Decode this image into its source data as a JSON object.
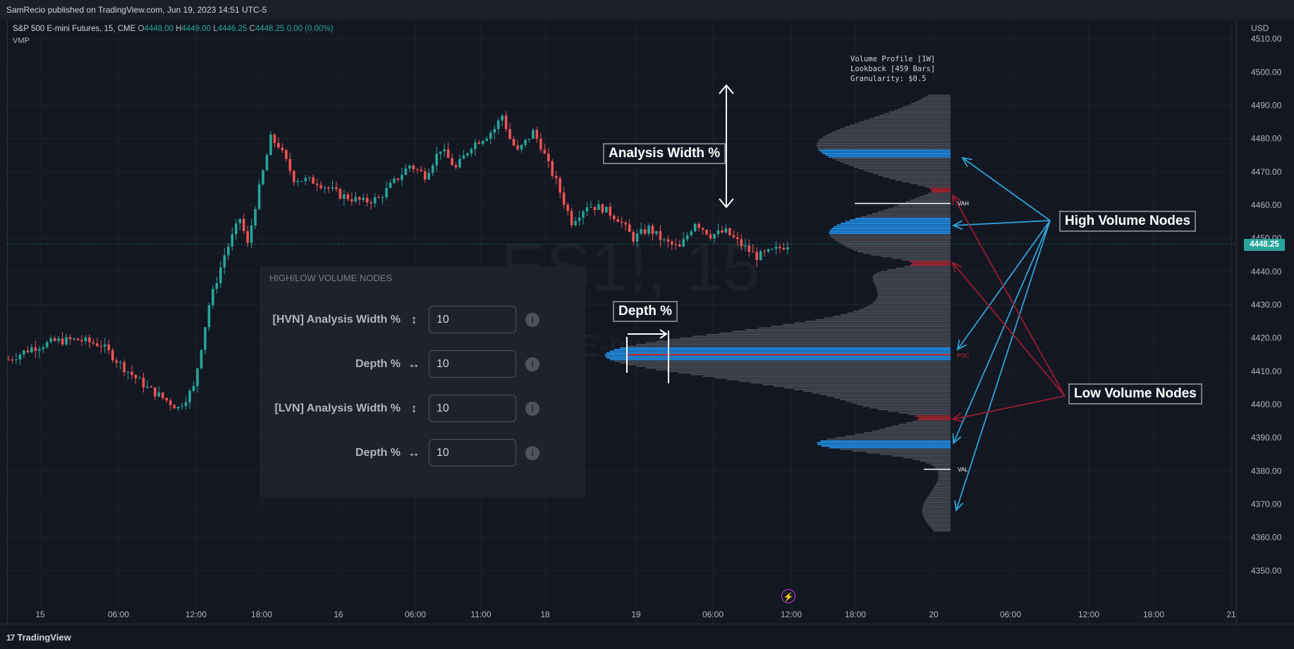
{
  "header": {
    "publisher_line": "SamRecio published on TradingView.com, Jun 19, 2023 14:51 UTC-5"
  },
  "legend": {
    "symbol": "S&P 500 E-mini Futures, 15, CME",
    "o_label": "O",
    "o_value": "4448.00",
    "h_label": "H",
    "h_value": "4449.00",
    "l_label": "L",
    "l_value": "4446.25",
    "c_label": "C",
    "c_value": "4448.25",
    "change": "0.00 (0.00%)",
    "indicator": "VMP"
  },
  "currency": "USD",
  "watermark": {
    "ticker": "ES1!, 15",
    "sub": "E-mini"
  },
  "volume_profile_info": "Volume Profile [1W]\nLookback [459 Bars]\nGranularity: $0.5",
  "callouts": {
    "analysis_width": "Analysis Width %",
    "depth": "Depth %",
    "high_volume_nodes": "High Volume Nodes",
    "low_volume_nodes": "Low Volume Nodes"
  },
  "settings": {
    "title": "HIGH/LOW VOLUME NODES",
    "rows": [
      {
        "label": "[HVN] Analysis Width %",
        "arrow": "↕",
        "value": "10"
      },
      {
        "label": "Depth %",
        "arrow": "↔",
        "value": "10"
      },
      {
        "label": "[LVN]  Analysis Width %",
        "arrow": "↕",
        "value": "10"
      },
      {
        "label": "Depth %",
        "arrow": "↔",
        "value": "10"
      }
    ],
    "info_glyph": "i"
  },
  "footer": {
    "brand": "TradingView",
    "logo_glyph": "17"
  },
  "current_price_tag": "4448.25",
  "colors": {
    "background": "#131722",
    "up": "#26a69a",
    "down": "#ef5350",
    "hvn": "#2196f3",
    "lvn": "#b22833",
    "profile": "#4a4c55",
    "arrow_blue": "#2fa3d8",
    "arrow_red": "#9b1c31"
  },
  "chart_data": {
    "type": "candlestick",
    "symbol": "ES1!",
    "interval": "15",
    "y_axis": {
      "ticks": [
        "4510.00",
        "4500.00",
        "4490.00",
        "4480.00",
        "4470.00",
        "4460.00",
        "4450.00",
        "4440.00",
        "4430.00",
        "4420.00",
        "4410.00",
        "4400.00",
        "4390.00",
        "4380.00",
        "4370.00",
        "4360.00",
        "4350.00"
      ],
      "ylim": [
        4345,
        4512
      ]
    },
    "x_axis": {
      "ticks": [
        "15",
        "06:00",
        "12:00",
        "18:00",
        "16",
        "06:00",
        "11:00",
        "18",
        "19",
        "06:00",
        "12:00",
        "18:00",
        "20",
        "06:00",
        "12:00",
        "18:00",
        "21"
      ]
    },
    "close_path": [
      [
        0,
        4413.5
      ],
      [
        6,
        4417
      ],
      [
        12,
        4419
      ],
      [
        18,
        4419.5
      ],
      [
        24,
        4418
      ],
      [
        30,
        4411
      ],
      [
        36,
        4405
      ],
      [
        42,
        4400.5
      ],
      [
        44,
        4399
      ],
      [
        48,
        4405
      ],
      [
        52,
        4430
      ],
      [
        56,
        4445
      ],
      [
        60,
        4456
      ],
      [
        62,
        4448
      ],
      [
        64,
        4460
      ],
      [
        66,
        4470
      ],
      [
        68,
        4480
      ],
      [
        70,
        4478
      ],
      [
        74,
        4468
      ],
      [
        80,
        4467
      ],
      [
        86,
        4463
      ],
      [
        92,
        4461
      ],
      [
        96,
        4462
      ],
      [
        100,
        4467
      ],
      [
        104,
        4472
      ],
      [
        108,
        4469
      ],
      [
        112,
        4477
      ],
      [
        116,
        4471
      ],
      [
        120,
        4478
      ],
      [
        124,
        4481
      ],
      [
        126,
        4483
      ],
      [
        128,
        4487
      ],
      [
        130,
        4480
      ],
      [
        132,
        4476
      ],
      [
        134,
        4479
      ],
      [
        136,
        4482
      ],
      [
        138,
        4478
      ],
      [
        140,
        4472
      ],
      [
        142,
        4467
      ],
      [
        146,
        4455
      ],
      [
        150,
        4460
      ],
      [
        154,
        4459
      ],
      [
        158,
        4456
      ],
      [
        162,
        4450
      ],
      [
        166,
        4453
      ],
      [
        170,
        4449
      ],
      [
        174,
        4447
      ],
      [
        178,
        4455
      ],
      [
        182,
        4451
      ],
      [
        186,
        4452
      ],
      [
        190,
        4448
      ],
      [
        194,
        4444.5
      ],
      [
        198,
        4446
      ],
      [
        202,
        4448.25
      ]
    ],
    "current_price": 4448.25,
    "volume_profile": {
      "lookback": "1W",
      "bars": 459,
      "granularity": 0.5,
      "vah": 4460.5,
      "val": 4380.5,
      "poc": 4415,
      "labels": {
        "vah": "VAH",
        "val": "VAL",
        "poc": "POC"
      },
      "high_volume_nodes": [
        [
          4474.5,
          4476.5
        ],
        [
          4451.5,
          4456.0
        ],
        [
          4413.5,
          4417.0
        ],
        [
          4387.0,
          4389.0
        ]
      ],
      "low_volume_nodes": [
        4464.5,
        4442.5,
        4396.0
      ]
    }
  }
}
